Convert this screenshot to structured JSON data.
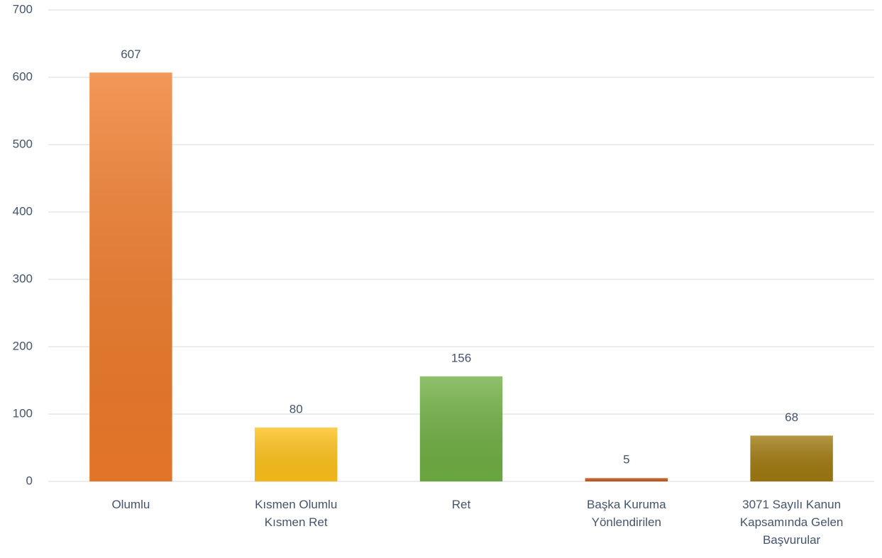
{
  "chart_data": {
    "type": "bar",
    "categories": [
      "Olumlu",
      "Kısmen Olumlu Kısmen Ret",
      "Ret",
      "Başka Kuruma Yönlendirilen",
      "3071 Sayılı Kanun Kapsamında Gelen Başvurular"
    ],
    "values": [
      607,
      80,
      156,
      5,
      68
    ],
    "colors": [
      "#f07b2a",
      "#ffc21a",
      "#70b043",
      "#c55a1e",
      "#a07a10"
    ],
    "ylim": [
      0,
      700
    ],
    "yticks": [
      0,
      100,
      200,
      300,
      400,
      500,
      600,
      700
    ],
    "grid": true
  }
}
